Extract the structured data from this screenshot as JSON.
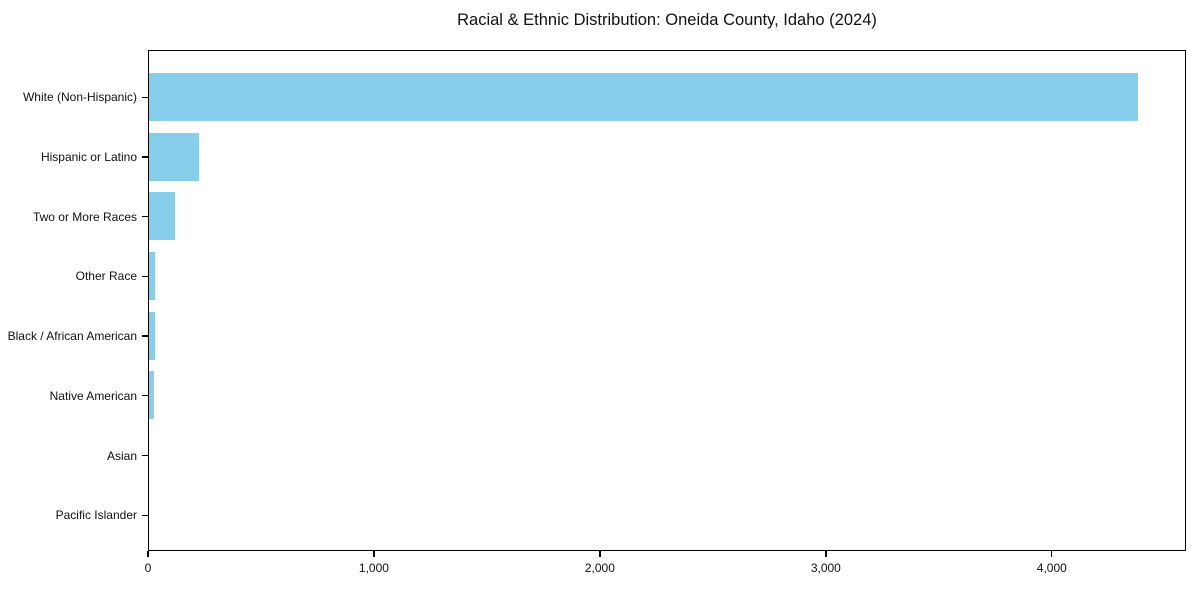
{
  "chart_data": {
    "type": "bar",
    "orientation": "horizontal",
    "title": "Racial & Ethnic Distribution: Oneida County, Idaho (2024)",
    "categories": [
      "White (Non-Hispanic)",
      "Hispanic or Latino",
      "Two or More Races",
      "Other Race",
      "Black / African American",
      "Native American",
      "Asian",
      "Pacific Islander"
    ],
    "values": [
      4375,
      220,
      113,
      26,
      25,
      24,
      0,
      0
    ],
    "xlabel": "",
    "ylabel": "",
    "xlim": [
      0,
      4594
    ],
    "x_ticks": [
      0,
      1000,
      2000,
      3000,
      4000
    ],
    "x_tick_labels": [
      "0",
      "1,000",
      "2,000",
      "3,000",
      "4,000"
    ],
    "bar_color": "#87CEEB",
    "spine_color": "#000000",
    "grid": false,
    "legend": null
  }
}
